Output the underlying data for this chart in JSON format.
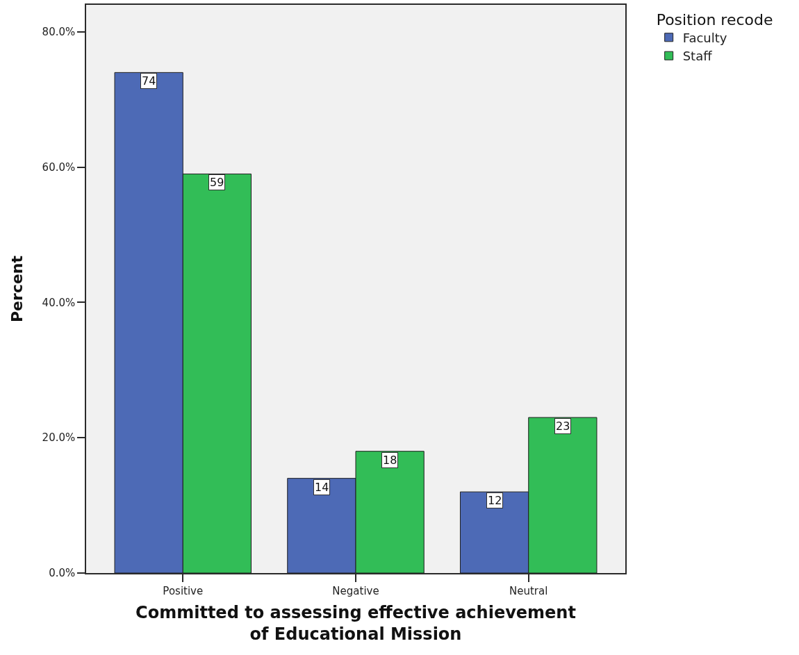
{
  "chart_data": {
    "type": "bar",
    "xlabel": "Committed to assessing effective achievement\nof Educational Mission",
    "ylabel": "Percent",
    "legend_title": "Position recode",
    "categories": [
      "Positive",
      "Negative",
      "Neutral"
    ],
    "series": [
      {
        "name": "Faculty",
        "color": "#4d6ab6",
        "values": [
          74,
          14,
          12
        ]
      },
      {
        "name": "Staff",
        "color": "#32bd57",
        "values": [
          59,
          18,
          23
        ]
      }
    ],
    "ylim": [
      0,
      84
    ],
    "yticks": [
      {
        "value": 0,
        "label": "0.0%"
      },
      {
        "value": 20,
        "label": "20.0%"
      },
      {
        "value": 40,
        "label": "40.0%"
      },
      {
        "value": 60,
        "label": "60.0%"
      },
      {
        "value": 80,
        "label": "80.0%"
      }
    ],
    "legend": "top right",
    "data_labels": true
  }
}
